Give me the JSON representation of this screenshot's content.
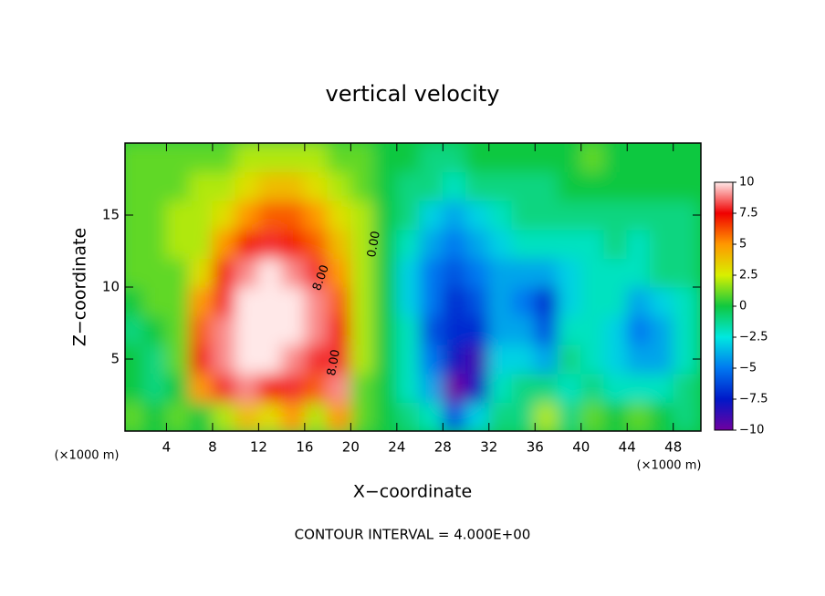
{
  "chart_data": {
    "type": "contour",
    "title": "vertical velocity",
    "xlabel": "X−coordinate",
    "ylabel": "Z−coordinate",
    "x_unit_label": "(×1000 m)",
    "footer": "CONTOUR INTERVAL = 4.000E+00",
    "xlim": [
      0.4,
      50.4
    ],
    "ylim": [
      0,
      20
    ],
    "xticks": [
      4,
      8,
      12,
      16,
      20,
      24,
      28,
      32,
      36,
      40,
      44,
      48
    ],
    "yticks": [
      5,
      10,
      15
    ],
    "x": [
      1,
      3,
      5,
      7,
      9,
      11,
      13,
      15,
      17,
      19,
      21,
      23,
      25,
      27,
      29,
      31,
      33,
      35,
      37,
      39,
      41,
      43,
      45,
      47,
      49
    ],
    "z": [
      1,
      3,
      5,
      7,
      9,
      11,
      13,
      15,
      17,
      19
    ],
    "values": [
      [
        1,
        0,
        1,
        0,
        2,
        4,
        3,
        5,
        2,
        5,
        1,
        0,
        -1,
        -2,
        -6,
        -3,
        -1,
        -1,
        2,
        -1,
        1,
        0,
        1,
        0,
        -1
      ],
      [
        0,
        -1,
        0,
        5,
        8,
        9,
        7,
        8,
        6,
        9,
        1,
        0,
        -2,
        -4,
        -10,
        -8,
        -2,
        -1,
        -1,
        -2,
        -1,
        -2,
        -2,
        -2,
        -1
      ],
      [
        0,
        -1,
        1,
        7,
        9,
        10,
        10,
        9,
        8,
        8,
        2,
        0,
        -2,
        -5,
        -8,
        -9,
        -3,
        -3,
        -4,
        -1,
        -2,
        -3,
        -4,
        -4,
        -2
      ],
      [
        -1,
        0,
        1,
        6,
        9,
        10,
        10,
        10,
        9,
        7,
        2,
        0,
        -2,
        -6,
        -7,
        -7,
        -4,
        -4,
        -6,
        -2,
        -2,
        -3,
        -5,
        -4,
        -2
      ],
      [
        0,
        1,
        1,
        5,
        8,
        10,
        10,
        10,
        9,
        6,
        2,
        0,
        -3,
        -5,
        -7,
        -6,
        -4,
        -5,
        -7,
        -3,
        -2,
        -2,
        -4,
        -3,
        -2
      ],
      [
        1,
        1,
        1,
        3,
        7,
        9,
        10,
        9,
        8,
        5,
        2,
        0,
        -3,
        -5,
        -6,
        -5,
        -4,
        -4,
        -4,
        -3,
        -2,
        -2,
        -2,
        -1,
        -1
      ],
      [
        1,
        1,
        2,
        2,
        5,
        7,
        8,
        7,
        6,
        4,
        2,
        0,
        -2,
        -4,
        -5,
        -4,
        -3,
        -2,
        -2,
        -2,
        -2,
        -1,
        -2,
        -1,
        -1
      ],
      [
        1,
        1,
        2,
        2,
        3,
        5,
        6,
        6,
        5,
        3,
        2,
        0,
        -1,
        -3,
        -4,
        -3,
        -2,
        -1,
        -1,
        -1,
        -1,
        -1,
        -1,
        -1,
        -1
      ],
      [
        1,
        1,
        1,
        2,
        2,
        3,
        4,
        4,
        3,
        2,
        1,
        0,
        -1,
        -1,
        -2,
        -1,
        -1,
        -1,
        -1,
        0,
        0,
        0,
        0,
        0,
        0
      ],
      [
        1,
        1,
        1,
        1,
        1,
        2,
        2,
        2,
        2,
        1,
        1,
        0,
        0,
        -1,
        -1,
        0,
        0,
        0,
        0,
        0,
        1,
        0,
        0,
        0,
        0
      ]
    ],
    "contour_labels": [
      "8.00",
      "0.00",
      "8.00"
    ],
    "colorbar": {
      "lim": [
        -10,
        10
      ],
      "ticks": [
        10,
        7.5,
        5,
        2.5,
        0,
        {
          "value": -2.5,
          "label": "−2.5"
        },
        {
          "value": -5,
          "label": "−5"
        },
        {
          "value": -7.5,
          "label": "−7.5"
        },
        {
          "value": -10,
          "label": "−10"
        }
      ],
      "stops": [
        {
          "value": -10,
          "color": "#7000a0"
        },
        {
          "value": -7.5,
          "color": "#0018c8"
        },
        {
          "value": -5,
          "color": "#0078f0"
        },
        {
          "value": -2.5,
          "color": "#00e8e0"
        },
        {
          "value": 0,
          "color": "#10c840"
        },
        {
          "value": 2.5,
          "color": "#d8f000"
        },
        {
          "value": 5,
          "color": "#ff9800"
        },
        {
          "value": 7.5,
          "color": "#f00000"
        },
        {
          "value": 10,
          "color": "#ffe8e8"
        }
      ]
    }
  }
}
